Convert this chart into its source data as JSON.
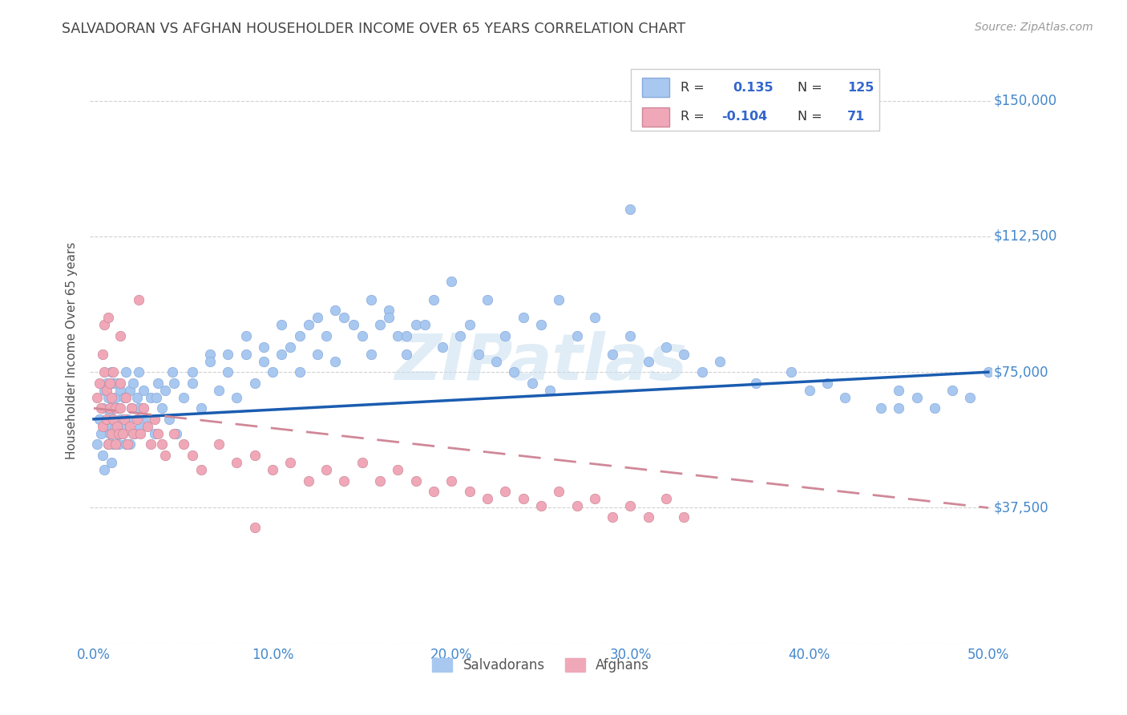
{
  "title": "SALVADORAN VS AFGHAN HOUSEHOLDER INCOME OVER 65 YEARS CORRELATION CHART",
  "source": "Source: ZipAtlas.com",
  "ylabel": "Householder Income Over 65 years",
  "xlim": [
    0.0,
    0.5
  ],
  "ylim": [
    0,
    162000
  ],
  "yticks": [
    0,
    37500,
    75000,
    112500,
    150000
  ],
  "ytick_labels": [
    "",
    "$37,500",
    "$75,000",
    "$112,500",
    "$150,000"
  ],
  "xtick_labels": [
    "0.0%",
    "10.0%",
    "20.0%",
    "30.0%",
    "40.0%",
    "50.0%"
  ],
  "xticks": [
    0.0,
    0.1,
    0.2,
    0.3,
    0.4,
    0.5
  ],
  "salvadoran_color": "#a8c8f0",
  "afghan_color": "#f0a8b8",
  "trend_blue": "#1a5cb0",
  "trend_pink": "#d08898",
  "watermark": "ZIPatlas",
  "legend_v1": "0.135",
  "legend_nv1": "125",
  "legend_v2": "-0.104",
  "legend_nv2": "71",
  "salvadoran_label": "Salvadorans",
  "afghan_label": "Afghans",
  "title_color": "#444444",
  "axis_label_color": "#505050",
  "tick_color": "#4488cc",
  "grid_color": "#cccccc",
  "background_color": "#ffffff"
}
